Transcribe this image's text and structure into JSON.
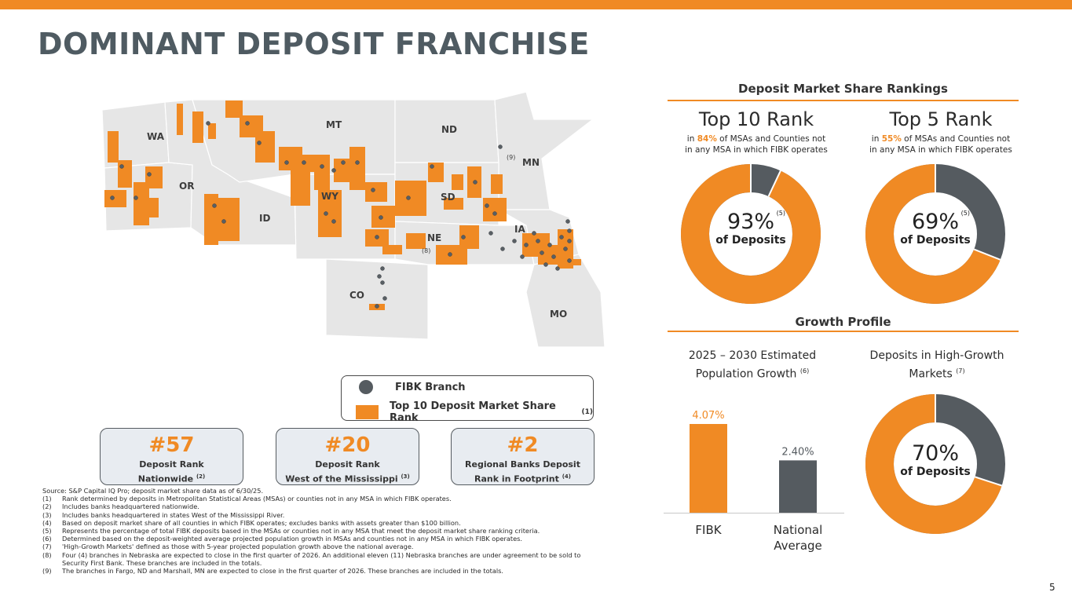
{
  "title": "DOMINANT DEPOSIT FRANCHISE",
  "page_number": "5",
  "colors": {
    "accent": "#f08a24",
    "dark": "#555b60",
    "map_gray": "#e6e6e6"
  },
  "map": {
    "state_labels": [
      "WA",
      "MT",
      "ND",
      "MN",
      "OR",
      "ID",
      "WY",
      "SD",
      "NE",
      "IA",
      "CO",
      "MO"
    ],
    "notes": [
      "(9)",
      "(8)"
    ]
  },
  "legend": {
    "branch": "FIBK Branch",
    "rank_label": "Top 10 Deposit Market Share Rank",
    "rank_note": "(1)"
  },
  "rank_boxes": [
    {
      "value": "#57",
      "line1": "Deposit Rank",
      "line2": "Nationwide",
      "note": "(2)"
    },
    {
      "value": "#20",
      "line1": "Deposit Rank",
      "line2": "West of the Mississippi",
      "note": "(3)"
    },
    {
      "value": "#2",
      "line1": "Regional Banks Deposit",
      "line2": "Rank in Footprint",
      "note": "(4)"
    }
  ],
  "footnotes": {
    "source": "Source: S&P Capital IQ Pro; deposit market share data as of 6/30/25.",
    "items": [
      {
        "num": "(1)",
        "text": "Rank determined by deposits in Metropolitan Statistical Areas (MSAs) or counties not in any MSA in which FIBK operates."
      },
      {
        "num": "(2)",
        "text": "Includes banks headquartered nationwide."
      },
      {
        "num": "(3)",
        "text": "Includes banks headquartered in states West of the Mississippi River."
      },
      {
        "num": "(4)",
        "text": "Based on deposit market share of all counties in which FIBK operates; excludes banks with assets greater than $100 billion."
      },
      {
        "num": "(5)",
        "text": "Represents the percentage of total FIBK deposits based in the MSAs or counties not in any MSA that meet the deposit market share ranking criteria."
      },
      {
        "num": "(6)",
        "text": "Determined based on the deposit-weighted average projected population growth in MSAs and counties not in any MSA in which FIBK operates."
      },
      {
        "num": "(7)",
        "text": "'High-Growth Markets' defined as those with 5-year projected population growth above the national average."
      },
      {
        "num": "(8)",
        "text": "Four (4) branches in Nebraska are expected to close in the first quarter of 2026. An additional eleven (11) Nebraska branches are under agreement to be sold to Security First Bank. These branches are included in the totals."
      },
      {
        "num": "(9)",
        "text": "The branches in Fargo, ND and Marshall, MN are expected to close in the first quarter of 2026. These branches are included in the totals."
      }
    ]
  },
  "rankings": {
    "header": "Deposit Market Share Rankings",
    "top10": {
      "title": "Top 10 Rank",
      "sub_pre": "in ",
      "sub_pct": "84%",
      "sub_post": " of MSAs and Counties not",
      "sub_line2": "in any MSA in which FIBK operates",
      "donut_value": "93%",
      "donut_fraction": 0.93,
      "donut_note": "(5)",
      "donut_label": "of Deposits"
    },
    "top5": {
      "title": "Top 5 Rank",
      "sub_pre": "in ",
      "sub_pct": "55%",
      "sub_post": " of MSAs and Counties not",
      "sub_line2": "in any MSA in which FIBK operates",
      "donut_value": "69%",
      "donut_fraction": 0.69,
      "donut_note": "(5)",
      "donut_label": "of Deposits"
    }
  },
  "growth": {
    "header": "Growth Profile",
    "pop_title_line1": "2025 – 2030 Estimated",
    "pop_title_line2": "Population Growth",
    "pop_note": "(6)",
    "hg_title_line1": "Deposits in High-Growth",
    "hg_title_line2": "Markets",
    "hg_note": "(7)",
    "hg_donut_value": "70%",
    "hg_donut_fraction": 0.7,
    "hg_donut_label": "of Deposits"
  },
  "chart_data": {
    "type": "bar",
    "categories": [
      "FIBK",
      "National\nAverage"
    ],
    "values": [
      4.07,
      2.4
    ],
    "value_labels": [
      "4.07%",
      "2.40%"
    ],
    "colors": [
      "#f08a24",
      "#555b60"
    ],
    "title": "2025 – 2030 Estimated Population Growth",
    "ylim": [
      0,
      4.5
    ],
    "grid": false
  }
}
